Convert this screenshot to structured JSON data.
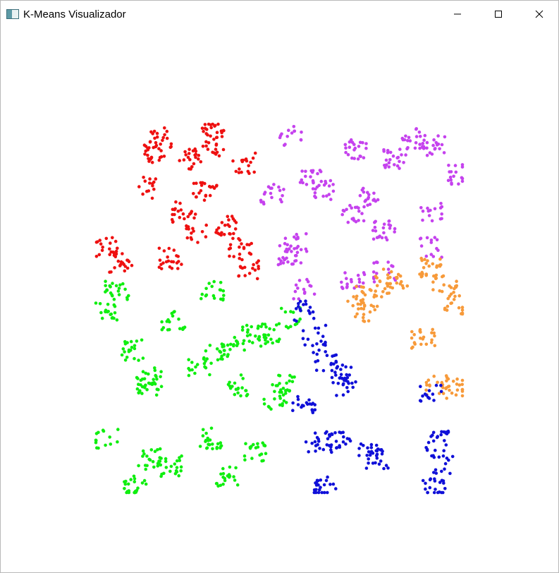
{
  "window": {
    "title": "K-Means Visualizador",
    "icon": "application-window-icon",
    "controls": [
      {
        "name": "minimize-button",
        "icon": "minimize-icon"
      },
      {
        "name": "maximize-button",
        "icon": "maximize-icon"
      },
      {
        "name": "close-button",
        "icon": "close-icon"
      }
    ]
  },
  "colors": {
    "red": "#ee1111",
    "purple": "#c542ee",
    "orange": "#f79a3a",
    "green": "#10ee10",
    "blue": "#1010d8"
  },
  "clusters": [
    {
      "color": "red",
      "centers": [
        [
          215,
          215
        ],
        [
          270,
          225
        ],
        [
          205,
          265
        ],
        [
          300,
          205
        ],
        [
          290,
          270
        ],
        [
          345,
          230
        ],
        [
          150,
          350
        ],
        [
          170,
          370
        ],
        [
          240,
          365
        ],
        [
          280,
          330
        ],
        [
          340,
          350
        ],
        [
          350,
          380
        ],
        [
          260,
          300
        ],
        [
          320,
          320
        ],
        [
          225,
          195
        ],
        [
          300,
          180
        ]
      ]
    },
    {
      "color": "purple",
      "centers": [
        [
          410,
          360
        ],
        [
          420,
          345
        ],
        [
          440,
          255
        ],
        [
          460,
          270
        ],
        [
          505,
          210
        ],
        [
          560,
          225
        ],
        [
          585,
          195
        ],
        [
          615,
          205
        ],
        [
          520,
          280
        ],
        [
          545,
          325
        ],
        [
          500,
          300
        ],
        [
          610,
          300
        ],
        [
          610,
          350
        ],
        [
          430,
          410
        ],
        [
          500,
          395
        ],
        [
          545,
          385
        ],
        [
          385,
          275
        ],
        [
          410,
          190
        ],
        [
          650,
          245
        ]
      ]
    },
    {
      "color": "orange",
      "centers": [
        [
          505,
          420
        ],
        [
          540,
          405
        ],
        [
          560,
          395
        ],
        [
          520,
          440
        ],
        [
          610,
          380
        ],
        [
          630,
          400
        ],
        [
          645,
          430
        ],
        [
          600,
          480
        ],
        [
          640,
          550
        ],
        [
          620,
          545
        ]
      ]
    },
    {
      "color": "green",
      "centers": [
        [
          165,
          410
        ],
        [
          150,
          440
        ],
        [
          245,
          455
        ],
        [
          185,
          495
        ],
        [
          210,
          545
        ],
        [
          215,
          535
        ],
        [
          280,
          520
        ],
        [
          305,
          500
        ],
        [
          340,
          545
        ],
        [
          360,
          475
        ],
        [
          380,
          470
        ],
        [
          410,
          450
        ],
        [
          400,
          545
        ],
        [
          150,
          620
        ],
        [
          210,
          650
        ],
        [
          240,
          660
        ],
        [
          190,
          685
        ],
        [
          300,
          620
        ],
        [
          360,
          640
        ],
        [
          320,
          675
        ],
        [
          300,
          410
        ],
        [
          330,
          490
        ],
        [
          390,
          565
        ]
      ]
    },
    {
      "color": "blue",
      "centers": [
        [
          430,
          440
        ],
        [
          445,
          475
        ],
        [
          460,
          510
        ],
        [
          480,
          530
        ],
        [
          490,
          545
        ],
        [
          610,
          560
        ],
        [
          450,
          625
        ],
        [
          480,
          625
        ],
        [
          525,
          635
        ],
        [
          535,
          650
        ],
        [
          620,
          625
        ],
        [
          625,
          655
        ],
        [
          615,
          690
        ],
        [
          460,
          690
        ],
        [
          430,
          575
        ]
      ]
    }
  ]
}
